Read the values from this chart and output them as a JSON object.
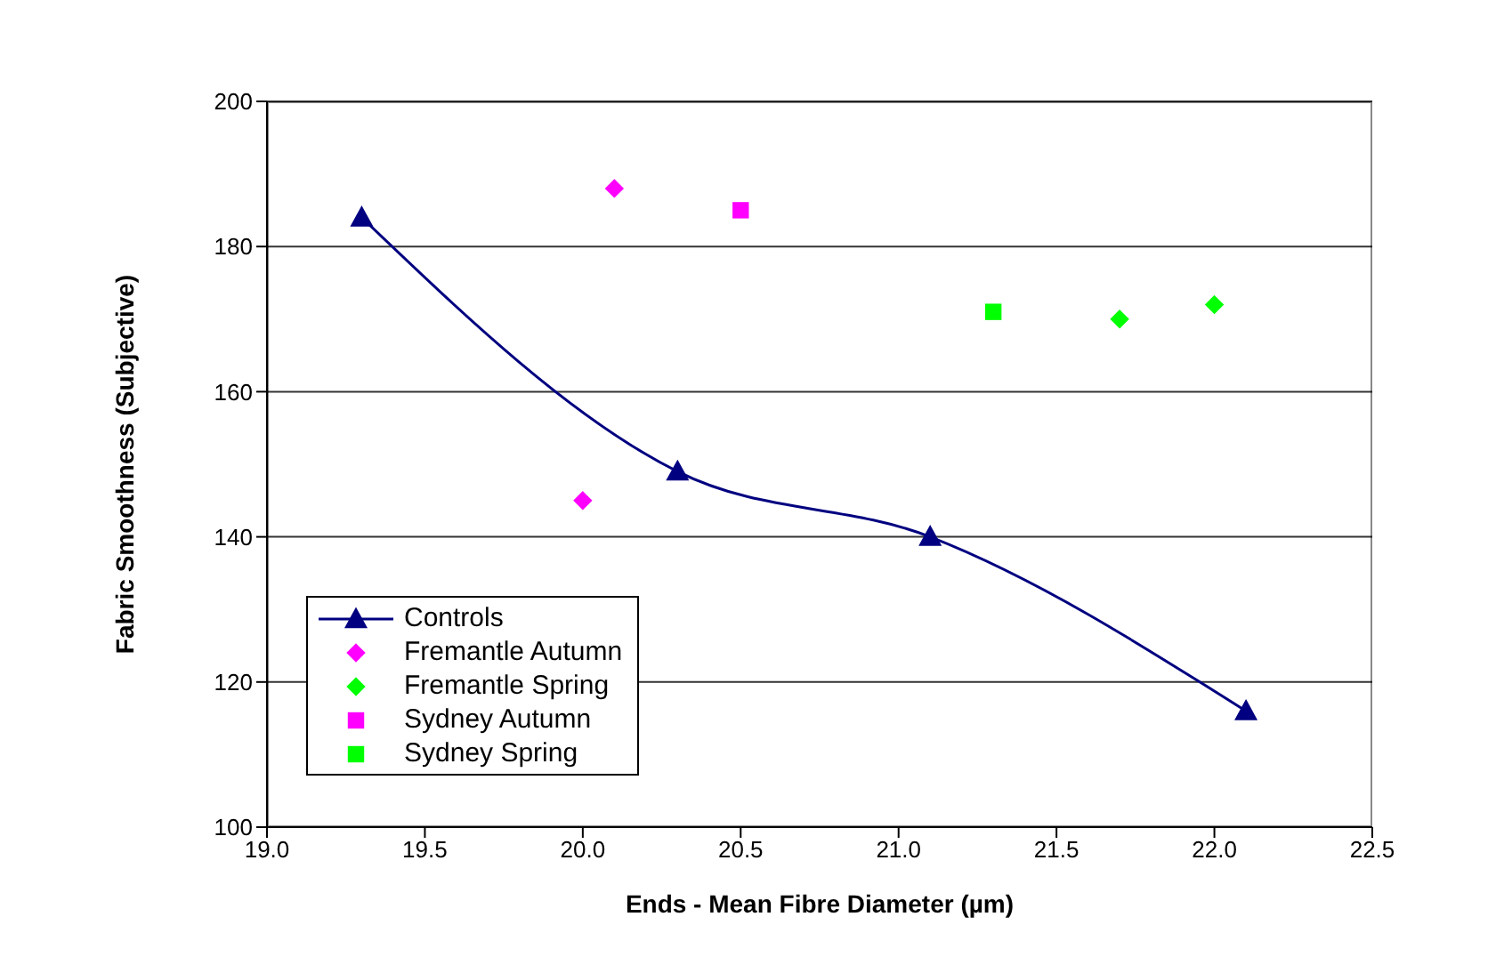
{
  "chart_data": {
    "type": "scatter",
    "xlabel": "Ends - Mean Fibre Diameter (µm)",
    "ylabel": "Fabric Smoothness (Subjective)",
    "xlim": [
      19.0,
      22.5
    ],
    "xticks": [
      {
        "value": 19.0,
        "label": "19.0"
      },
      {
        "value": 19.5,
        "label": "19.5"
      },
      {
        "value": 20.0,
        "label": "20.0"
      },
      {
        "value": 20.5,
        "label": "20.5"
      },
      {
        "value": 21.0,
        "label": "21.0"
      },
      {
        "value": 21.5,
        "label": "21.5"
      },
      {
        "value": 22.0,
        "label": "22.0"
      },
      {
        "value": 22.5,
        "label": "22.5"
      }
    ],
    "ylim": [
      100,
      200
    ],
    "yticks": [
      100,
      120,
      140,
      160,
      180,
      200
    ],
    "grid": "y",
    "legend": "bottom left",
    "series": [
      {
        "name": "Controls",
        "type": "line",
        "color": "#000080",
        "marker": "triangle",
        "x": [
          19.3,
          20.3,
          21.1,
          22.1
        ],
        "values": [
          184,
          149,
          140,
          116
        ]
      },
      {
        "name": "Fremantle Autumn",
        "color": "#ff00ff",
        "marker": "diamond",
        "x": [
          20.1,
          20.0
        ],
        "values": [
          188,
          145
        ]
      },
      {
        "name": "Fremantle Spring",
        "color": "#00ff00",
        "marker": "diamond",
        "x": [
          21.7,
          22.0
        ],
        "values": [
          170,
          172
        ]
      },
      {
        "name": "Sydney Autumn",
        "color": "#ff00ff",
        "marker": "square",
        "x": [
          20.5
        ],
        "values": [
          185
        ]
      },
      {
        "name": "Sydney Spring",
        "color": "#00ff00",
        "marker": "square",
        "x": [
          21.3
        ],
        "values": [
          171
        ]
      }
    ]
  }
}
